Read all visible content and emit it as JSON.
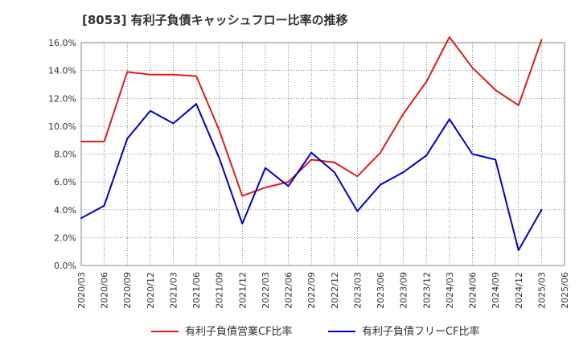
{
  "chart_data": {
    "type": "line",
    "title": "[8053]  有利子負債キャッシュフロー比率の推移",
    "xlabel": "",
    "ylabel": "",
    "x": [
      "2020/03",
      "2020/06",
      "2020/09",
      "2020/12",
      "2021/03",
      "2021/06",
      "2021/09",
      "2021/12",
      "2022/03",
      "2022/06",
      "2022/09",
      "2022/12",
      "2023/03",
      "2023/06",
      "2023/09",
      "2023/12",
      "2024/03",
      "2024/06",
      "2024/09",
      "2024/12",
      "2025/03",
      "2025/06"
    ],
    "yticks": [
      "0.0%",
      "2.0%",
      "4.0%",
      "6.0%",
      "8.0%",
      "10.0%",
      "12.0%",
      "14.0%",
      "16.0%"
    ],
    "ylim": [
      0,
      16.0
    ],
    "grid": true,
    "legend_position": "bottom",
    "series": [
      {
        "name": "有利子負債営業CF比率",
        "color": "#e31a1c",
        "values": [
          8.9,
          8.9,
          13.9,
          13.7,
          13.7,
          13.6,
          9.7,
          5.0,
          5.6,
          6.0,
          7.6,
          7.4,
          6.4,
          8.1,
          10.9,
          13.2,
          16.4,
          14.2,
          12.6,
          11.5,
          16.2,
          null
        ]
      },
      {
        "name": "有利子負債フリーCF比率",
        "color": "#0000cc",
        "values": [
          3.4,
          4.3,
          9.1,
          11.1,
          10.2,
          11.6,
          7.7,
          3.0,
          7.0,
          5.7,
          8.1,
          6.7,
          3.9,
          5.8,
          6.7,
          7.9,
          10.5,
          8.0,
          7.6,
          1.1,
          4.0,
          null
        ]
      }
    ]
  }
}
